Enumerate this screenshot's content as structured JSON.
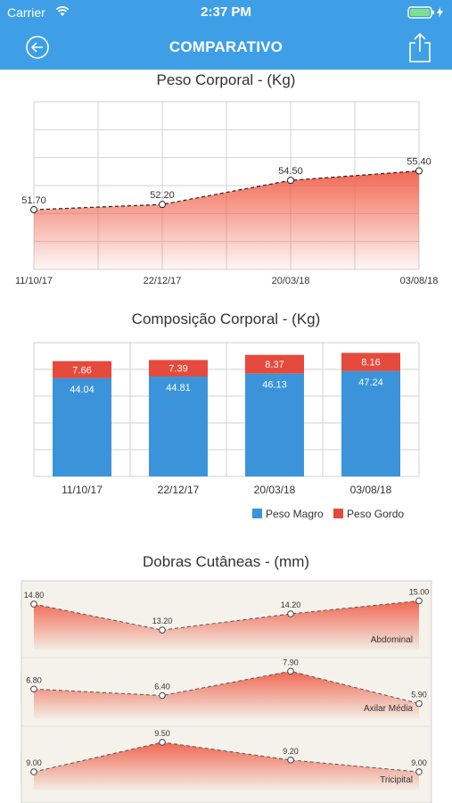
{
  "status_bar": {
    "carrier": "Carrier",
    "time": "2:37 PM"
  },
  "nav": {
    "title": "COMPARATIVO"
  },
  "colors": {
    "nav_bg": "#3f9fe6",
    "lean": "#3b94da",
    "fat": "#e54a3c",
    "fill_red": "#f0604a"
  },
  "icons": {
    "back": "circle-arrow-left-icon",
    "share": "share-icon",
    "wifi": "wifi-icon",
    "battery": "battery-charging-icon"
  },
  "weight": {
    "title": "Peso Corporal - (Kg)",
    "chart_data": {
      "type": "area",
      "title": "Peso Corporal - (Kg)",
      "categories": [
        "11/10/17",
        "22/12/17",
        "20/03/18",
        "03/08/18"
      ],
      "values": [
        51.7,
        52.2,
        54.5,
        55.4
      ],
      "labels": [
        "51.70",
        "52.20",
        "54.50",
        "55.40"
      ],
      "grid": true
    }
  },
  "composition": {
    "title": "Composição Corporal - (Kg)",
    "chart_data": {
      "type": "bar",
      "stacked": true,
      "title": "Composição Corporal - (Kg)",
      "categories": [
        "11/10/17",
        "22/12/17",
        "20/03/18",
        "03/08/18"
      ],
      "series": [
        {
          "name": "Peso Magro",
          "values": [
            44.04,
            44.81,
            46.13,
            47.24
          ],
          "labels": [
            "44.04",
            "44.81",
            "46.13",
            "47.24"
          ]
        },
        {
          "name": "Peso Gordo",
          "values": [
            7.66,
            7.39,
            8.37,
            8.16
          ],
          "labels": [
            "7.66",
            "7.39",
            "8.37",
            "8.16"
          ]
        }
      ],
      "legend": "bottom-right",
      "grid": true
    }
  },
  "skinfolds": {
    "title": "Dobras Cutâneas - (mm)",
    "chart_data": {
      "type": "area",
      "title": "Dobras Cutâneas - (mm)",
      "panels": [
        {
          "name": "Abdominal",
          "values": [
            14.8,
            13.2,
            14.2,
            15.0
          ],
          "labels": [
            "14.80",
            "13.20",
            "14.20",
            "15.00"
          ]
        },
        {
          "name": "Axilar Média",
          "values": [
            6.8,
            6.4,
            7.9,
            5.9
          ],
          "labels": [
            "6.80",
            "6.40",
            "7.90",
            "5.90"
          ]
        },
        {
          "name": "Tricipital",
          "values": [
            9.0,
            9.5,
            9.2,
            9.0
          ],
          "labels": [
            "9.00",
            "9.50",
            "9.20",
            "9.00"
          ]
        }
      ]
    }
  }
}
